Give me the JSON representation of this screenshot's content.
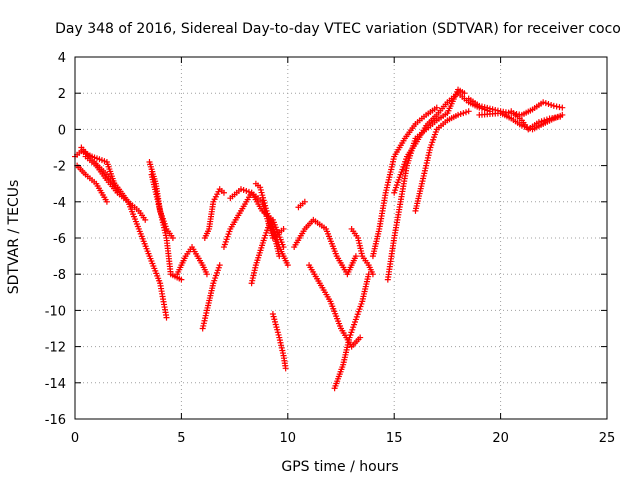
{
  "chart_data": {
    "type": "scatter",
    "title": "Day 348 of 2016, Sidereal Day-to-day VTEC variation (SDTVAR) for receiver coco",
    "xlabel": "GPS time / hours",
    "ylabel": "SDTVAR / TECUs",
    "xlim": [
      0,
      25
    ],
    "ylim": [
      -16,
      4
    ],
    "xticks": [
      0,
      5,
      10,
      15,
      20,
      25
    ],
    "yticks": [
      -16,
      -14,
      -12,
      -10,
      -8,
      -6,
      -4,
      -2,
      0,
      2,
      4
    ],
    "grid": true,
    "marker": "+",
    "color": "#ff0000",
    "tracks": [
      [
        [
          0.0,
          -1.5
        ],
        [
          0.3,
          -1.2
        ],
        [
          0.8,
          -1.5
        ],
        [
          1.5,
          -1.8
        ],
        [
          2.0,
          -3.5
        ],
        [
          2.5,
          -4.0
        ],
        [
          3.0,
          -4.5
        ],
        [
          3.3,
          -5.0
        ]
      ],
      [
        [
          0.1,
          -2.0
        ],
        [
          0.5,
          -2.5
        ],
        [
          1.0,
          -3.0
        ],
        [
          1.5,
          -4.0
        ]
      ],
      [
        [
          0.3,
          -1.0
        ],
        [
          0.8,
          -1.7
        ],
        [
          1.5,
          -2.5
        ],
        [
          2.0,
          -3.2
        ],
        [
          2.5,
          -4.0
        ],
        [
          3.0,
          -5.5
        ],
        [
          3.5,
          -7.0
        ],
        [
          4.0,
          -8.5
        ],
        [
          4.3,
          -10.4
        ]
      ],
      [
        [
          0.5,
          -1.5
        ],
        [
          1.0,
          -2.0
        ],
        [
          1.5,
          -2.8
        ],
        [
          2.0,
          -3.5
        ]
      ],
      [
        [
          3.5,
          -1.8
        ],
        [
          3.8,
          -3.0
        ],
        [
          4.0,
          -4.5
        ],
        [
          4.3,
          -5.5
        ],
        [
          4.6,
          -6.0
        ]
      ],
      [
        [
          3.6,
          -2.5
        ],
        [
          3.9,
          -4.0
        ],
        [
          4.3,
          -6.0
        ],
        [
          4.5,
          -8.0
        ],
        [
          5.0,
          -8.3
        ]
      ],
      [
        [
          4.8,
          -8.0
        ],
        [
          5.2,
          -7.0
        ],
        [
          5.5,
          -6.5
        ],
        [
          6.0,
          -7.5
        ],
        [
          6.2,
          -8.0
        ]
      ],
      [
        [
          6.0,
          -11.0
        ],
        [
          6.2,
          -10.0
        ],
        [
          6.5,
          -8.5
        ],
        [
          6.8,
          -7.5
        ]
      ],
      [
        [
          6.1,
          -6.0
        ],
        [
          6.3,
          -5.5
        ],
        [
          6.5,
          -4.0
        ],
        [
          6.8,
          -3.3
        ],
        [
          7.0,
          -3.5
        ]
      ],
      [
        [
          7.0,
          -6.5
        ],
        [
          7.3,
          -5.5
        ],
        [
          7.8,
          -4.5
        ],
        [
          8.3,
          -3.5
        ],
        [
          8.8,
          -4.0
        ],
        [
          9.3,
          -6.0
        ],
        [
          9.8,
          -5.5
        ]
      ],
      [
        [
          7.3,
          -3.8
        ],
        [
          7.8,
          -3.3
        ],
        [
          8.3,
          -3.5
        ],
        [
          8.8,
          -4.5
        ],
        [
          9.3,
          -5.0
        ],
        [
          9.8,
          -6.5
        ]
      ],
      [
        [
          8.5,
          -3.0
        ],
        [
          8.7,
          -3.2
        ],
        [
          9.0,
          -4.5
        ],
        [
          9.3,
          -5.5
        ],
        [
          9.6,
          -7.0
        ]
      ],
      [
        [
          8.3,
          -8.5
        ],
        [
          8.5,
          -7.5
        ],
        [
          8.9,
          -6.0
        ],
        [
          9.2,
          -5.0
        ],
        [
          9.6,
          -6.5
        ],
        [
          10.0,
          -7.5
        ]
      ],
      [
        [
          9.3,
          -10.2
        ],
        [
          9.6,
          -11.5
        ],
        [
          9.8,
          -12.5
        ],
        [
          9.9,
          -13.2
        ]
      ],
      [
        [
          10.3,
          -6.5
        ],
        [
          10.8,
          -5.5
        ],
        [
          11.2,
          -5.0
        ],
        [
          11.8,
          -5.5
        ],
        [
          12.3,
          -7.0
        ],
        [
          12.8,
          -8.0
        ],
        [
          13.2,
          -7.0
        ]
      ],
      [
        [
          10.5,
          -4.3
        ],
        [
          10.8,
          -4.0
        ]
      ],
      [
        [
          11.0,
          -7.5
        ],
        [
          11.5,
          -8.5
        ],
        [
          12.0,
          -9.5
        ],
        [
          12.5,
          -11.0
        ],
        [
          13.0,
          -12.0
        ],
        [
          13.4,
          -11.5
        ]
      ],
      [
        [
          12.2,
          -14.3
        ],
        [
          12.6,
          -13.0
        ],
        [
          12.9,
          -11.5
        ],
        [
          13.2,
          -10.5
        ],
        [
          13.5,
          -9.5
        ],
        [
          13.8,
          -8.0
        ]
      ],
      [
        [
          13.0,
          -5.5
        ],
        [
          13.3,
          -6.0
        ],
        [
          13.5,
          -7.0
        ],
        [
          13.8,
          -7.5
        ],
        [
          14.0,
          -8.0
        ]
      ],
      [
        [
          14.0,
          -7.0
        ],
        [
          14.3,
          -5.5
        ],
        [
          14.6,
          -3.5
        ],
        [
          14.8,
          -2.5
        ],
        [
          15.0,
          -1.5
        ],
        [
          15.5,
          -0.5
        ],
        [
          16.0,
          0.3
        ],
        [
          16.5,
          0.8
        ],
        [
          17.0,
          1.2
        ]
      ],
      [
        [
          14.7,
          -8.3
        ],
        [
          15.0,
          -6.0
        ],
        [
          15.3,
          -4.0
        ],
        [
          15.6,
          -2.0
        ],
        [
          16.0,
          -0.5
        ],
        [
          16.5,
          0.0
        ],
        [
          17.0,
          0.5
        ],
        [
          17.5,
          0.9
        ],
        [
          18.0,
          2.2
        ],
        [
          18.3,
          2.0
        ]
      ],
      [
        [
          15.0,
          -3.5
        ],
        [
          15.3,
          -2.5
        ],
        [
          15.6,
          -1.5
        ],
        [
          16.0,
          -0.8
        ],
        [
          16.5,
          0.2
        ],
        [
          17.0,
          0.8
        ],
        [
          17.5,
          1.5
        ],
        [
          18.0,
          2.0
        ],
        [
          18.5,
          1.5
        ],
        [
          19.0,
          1.2
        ],
        [
          19.5,
          1.0
        ]
      ],
      [
        [
          16.0,
          -4.5
        ],
        [
          16.3,
          -3.0
        ],
        [
          16.7,
          -1.0
        ],
        [
          17.0,
          0.0
        ],
        [
          17.5,
          0.5
        ],
        [
          18.0,
          0.8
        ],
        [
          18.5,
          1.0
        ]
      ],
      [
        [
          18.5,
          1.7
        ],
        [
          19.0,
          1.3
        ],
        [
          20.0,
          1.0
        ],
        [
          21.0,
          0.8
        ],
        [
          21.5,
          1.1
        ],
        [
          22.0,
          1.5
        ],
        [
          22.5,
          1.3
        ],
        [
          22.9,
          1.2
        ]
      ],
      [
        [
          19.0,
          0.8
        ],
        [
          20.0,
          0.9
        ],
        [
          20.5,
          0.6
        ],
        [
          21.0,
          0.2
        ],
        [
          21.5,
          0.0
        ],
        [
          22.0,
          0.3
        ],
        [
          22.5,
          0.6
        ],
        [
          22.9,
          0.8
        ]
      ],
      [
        [
          20.5,
          1.0
        ],
        [
          21.0,
          0.5
        ],
        [
          21.3,
          0.0
        ],
        [
          21.8,
          0.4
        ],
        [
          22.3,
          0.6
        ],
        [
          22.8,
          0.7
        ]
      ]
    ]
  }
}
